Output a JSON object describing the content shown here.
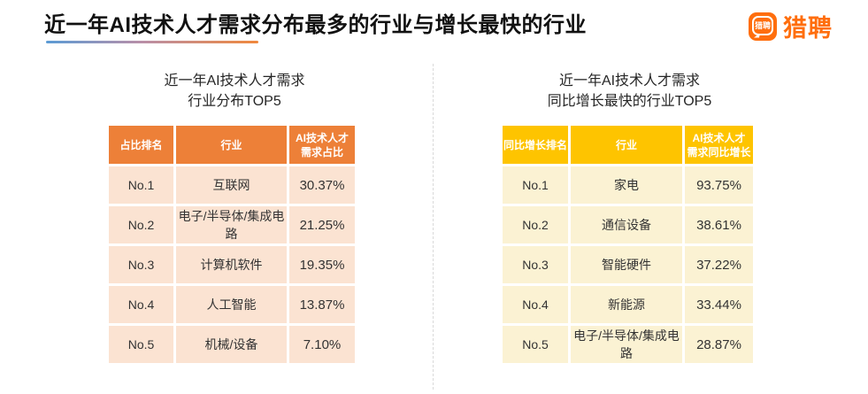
{
  "page_title": "近一年AI技术人才需求分布最多的行业与增长最快的行业",
  "logo": {
    "bubble_text": "猎聘",
    "brand_text": "猎聘"
  },
  "colors": {
    "brand_orange": "#FF6E0D",
    "underline_from": "#5B9BD5",
    "underline_to": "#F0883C",
    "left_header_bg": "#ED8038",
    "left_row_bg": "#FBE3D2",
    "right_header_bg": "#FEC400",
    "right_row_bg": "#FBF2D3"
  },
  "left_table": {
    "title_line1": "近一年AI技术人才需求",
    "title_line2": "行业分布TOP5",
    "headers": [
      "占比排名",
      "行业",
      "AI技术人才\n需求占比"
    ],
    "rows": [
      {
        "rank": "No.1",
        "industry": "互联网",
        "value": "30.37%"
      },
      {
        "rank": "No.2",
        "industry": "电子/半导体/集成电路",
        "value": "21.25%"
      },
      {
        "rank": "No.3",
        "industry": "计算机软件",
        "value": "19.35%"
      },
      {
        "rank": "No.4",
        "industry": "人工智能",
        "value": "13.87%"
      },
      {
        "rank": "No.5",
        "industry": "机械/设备",
        "value": "7.10%"
      }
    ]
  },
  "right_table": {
    "title_line1": "近一年AI技术人才需求",
    "title_line2": "同比增长最快的行业TOP5",
    "headers": [
      "同比增长排名",
      "行业",
      "AI技术人才\n需求同比增长"
    ],
    "rows": [
      {
        "rank": "No.1",
        "industry": "家电",
        "value": "93.75%"
      },
      {
        "rank": "No.2",
        "industry": "通信设备",
        "value": "38.61%"
      },
      {
        "rank": "No.3",
        "industry": "智能硬件",
        "value": "37.22%"
      },
      {
        "rank": "No.4",
        "industry": "新能源",
        "value": "33.44%"
      },
      {
        "rank": "No.5",
        "industry": "电子/半导体/集成电路",
        "value": "28.87%"
      }
    ]
  },
  "chart_data": [
    {
      "type": "table",
      "title": "近一年AI技术人才需求 行业分布TOP5",
      "columns": [
        "占比排名",
        "行业",
        "AI技术人才需求占比"
      ],
      "categories": [
        "互联网",
        "电子/半导体/集成电路",
        "计算机软件",
        "人工智能",
        "机械/设备"
      ],
      "values": [
        30.37,
        21.25,
        19.35,
        13.87,
        7.1
      ],
      "unit": "%",
      "ranks": [
        "No.1",
        "No.2",
        "No.3",
        "No.4",
        "No.5"
      ]
    },
    {
      "type": "table",
      "title": "近一年AI技术人才需求 同比增长最快的行业TOP5",
      "columns": [
        "同比增长排名",
        "行业",
        "AI技术人才需求同比增长"
      ],
      "categories": [
        "家电",
        "通信设备",
        "智能硬件",
        "新能源",
        "电子/半导体/集成电路"
      ],
      "values": [
        93.75,
        38.61,
        37.22,
        33.44,
        28.87
      ],
      "unit": "%",
      "ranks": [
        "No.1",
        "No.2",
        "No.3",
        "No.4",
        "No.5"
      ]
    }
  ]
}
